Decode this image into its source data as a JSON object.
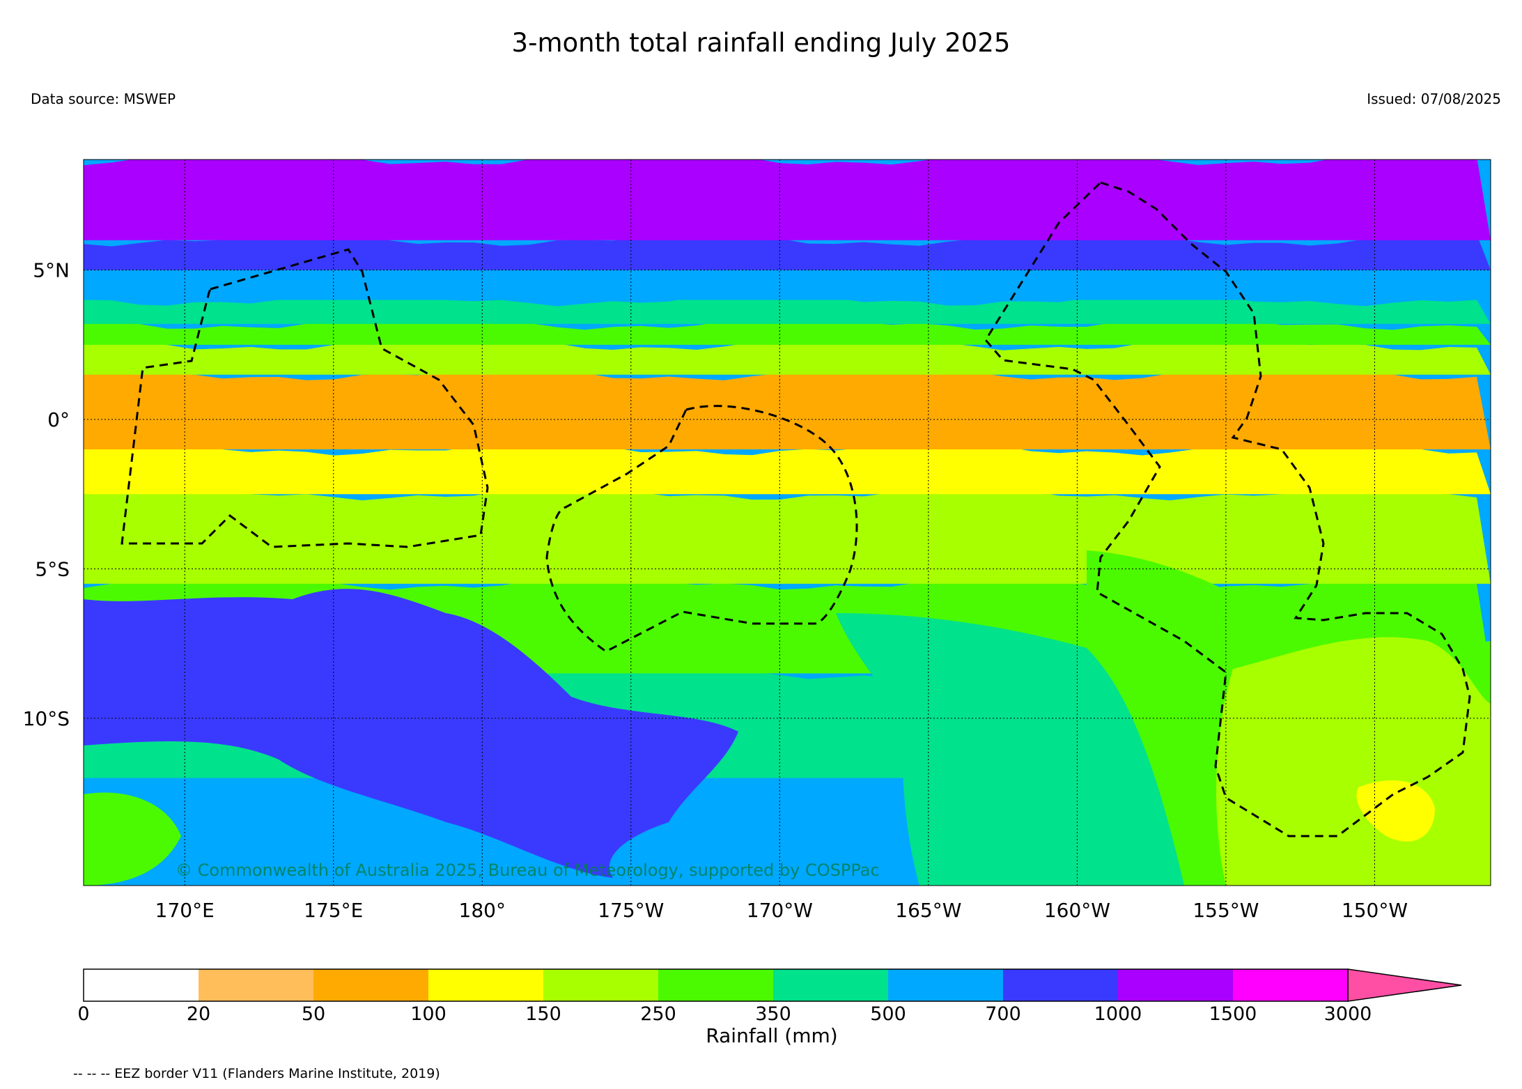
{
  "title": "3-month total rainfall ending July 2025",
  "data_source": "Data source: MSWEP",
  "issued": "Issued: 07/08/2025",
  "copyright": "© Commonwealth of Australia 2025, Bureau of Meteorology, supported by COSPPac",
  "map": {
    "lon_range": [
      166.6,
      213.9
    ],
    "lat_range": [
      -15.6,
      8.7
    ],
    "lon_ticks": [
      {
        "value": 170,
        "label": "170°E"
      },
      {
        "value": 175,
        "label": "175°E"
      },
      {
        "value": 180,
        "label": "180°"
      },
      {
        "value": 185,
        "label": "175°W"
      },
      {
        "value": 190,
        "label": "170°W"
      },
      {
        "value": 195,
        "label": "165°W"
      },
      {
        "value": 200,
        "label": "160°W"
      },
      {
        "value": 205,
        "label": "155°W"
      },
      {
        "value": 210,
        "label": "150°W"
      }
    ],
    "lat_ticks": [
      {
        "value": 5,
        "label": "5°N"
      },
      {
        "value": 0,
        "label": "0°"
      },
      {
        "value": -5,
        "label": "5°S"
      },
      {
        "value": -10,
        "label": "10°S"
      }
    ],
    "grid": true,
    "eez_style": "dashed black",
    "rainfall_bands_south_to_north": [
      {
        "lat": -15.6,
        "color": "#00A8FF"
      },
      {
        "lat": -12.0,
        "color": "#00E28C"
      },
      {
        "lat": -8.5,
        "color": "#4BFA00"
      },
      {
        "lat": -5.5,
        "color": "#A8FF00"
      },
      {
        "lat": -2.5,
        "color": "#FFFF00"
      },
      {
        "lat": -1.0,
        "color": "#FFAA00"
      },
      {
        "lat": 1.5,
        "color": "#A8FF00"
      },
      {
        "lat": 2.5,
        "color": "#4BFA00"
      },
      {
        "lat": 3.2,
        "color": "#00E28C"
      },
      {
        "lat": 4.0,
        "color": "#00A8FF"
      },
      {
        "lat": 5.0,
        "color": "#3A3AFF"
      },
      {
        "lat": 6.0,
        "color": "#AA00FF"
      }
    ]
  },
  "colorbar": {
    "title": "Rainfall (mm)",
    "labels": [
      "0",
      "20",
      "50",
      "100",
      "150",
      "250",
      "350",
      "500",
      "700",
      "1000",
      "1500",
      "3000"
    ],
    "colors": [
      "#FFFFFF",
      "#FFBE5A",
      "#FFAA00",
      "#FFFF00",
      "#A8FF00",
      "#4BFA00",
      "#00E28C",
      "#00A8FF",
      "#3A3AFF",
      "#AA00FF",
      "#FF00FF"
    ],
    "extend_color": "#FF4FA5"
  },
  "legend_note": "-- -- -- EEZ border V11 (Flanders Marine Institute, 2019)"
}
